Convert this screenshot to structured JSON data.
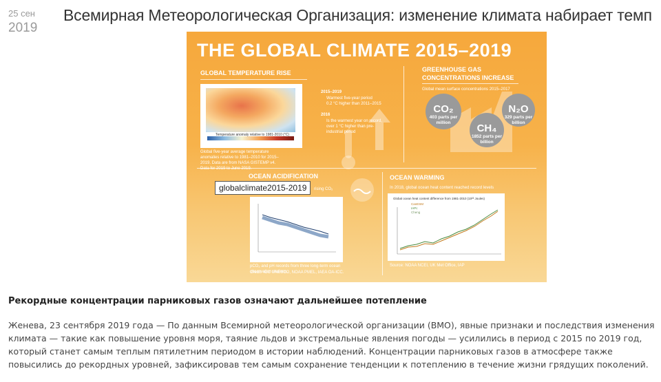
{
  "date": {
    "day": "25 сен",
    "year": "2019"
  },
  "article": {
    "title": "Всемирная Метеорологическая Организация: изменение климата набирает темп",
    "subheading": "Рекордные концентрации парниковых газов означают дальнейшее потепление",
    "body": "Женева, 23 сентября 2019 года — По данным Всемирной метеорологической организации (ВМО), явные признаки и последствия изменения климата — такие как повышение уровня моря, таяние льдов и экстремальные явления погоды — усилились в период с 2015 по 2019 год, который станет самым теплым пятилетним периодом в истории наблюдений. Концентрации парниковых газов в атмосфере также повысились до рекордных уровней, зафиксировав тем самым сохранение тенденции к потеплению в течение жизни грядущих поколений."
  },
  "image": {
    "tooltip": "globalclimate2015-2019",
    "heading": "THE GLOBAL CLIMATE 2015–2019",
    "temp_rise": {
      "label": "GLOBAL TEMPERATURE RISE",
      "map_caption": "Temperature anomaly relative to 1981-2010 (°C)",
      "note": "Global five-year average temperature anomalies relative to 1981–2010 for 2015–2019. Data are from NASA GISTEMP v4. Data for 2019 to June 2019.",
      "p1_year": "2015–2019",
      "p1_a": "Warmest five-year period",
      "p1_b": "0.2 °C higher than 2011–2015",
      "p2_year": "2016",
      "p2_a": "Is the warmest year on record, over 1 °C higher than pre-industrial period"
    },
    "ghg": {
      "label_1": "GREENHOUSE GAS",
      "label_2": "CONCENTRATIONS INCREASE",
      "sub": "Global mean surface concentrations 2015–2017",
      "co2": {
        "gas": "CO₂",
        "value": "403 parts per million"
      },
      "ch4": {
        "gas": "CH₄",
        "value": "1852 parts per billion"
      },
      "n2o": {
        "gas": "N₂O",
        "value": "329 parts per billion"
      }
    },
    "acid": {
      "label": "OCEAN ACIDIFICATION",
      "sub": "rising CO₂",
      "note": "pCO₂ and pH records from three long-term ocean observation stations.",
      "credit": "Credit: IOC UNESCO, NOAA PMEL, IAEA OA-ICC."
    },
    "warm": {
      "label": "OCEAN WARMING",
      "sub": "In 2018, global ocean heat content reached record levels",
      "chart_title": "Global ocean heat content difference from 1981-2010 (10²² Joules)",
      "legend": [
        "CanESM",
        "IAPc",
        "Cheng"
      ],
      "source": "Source: NOAA NCEI, UK Met Office, IAP"
    },
    "colors": {
      "orange": "#f6a83c",
      "grey_bubble": "#9a9a9a"
    }
  }
}
